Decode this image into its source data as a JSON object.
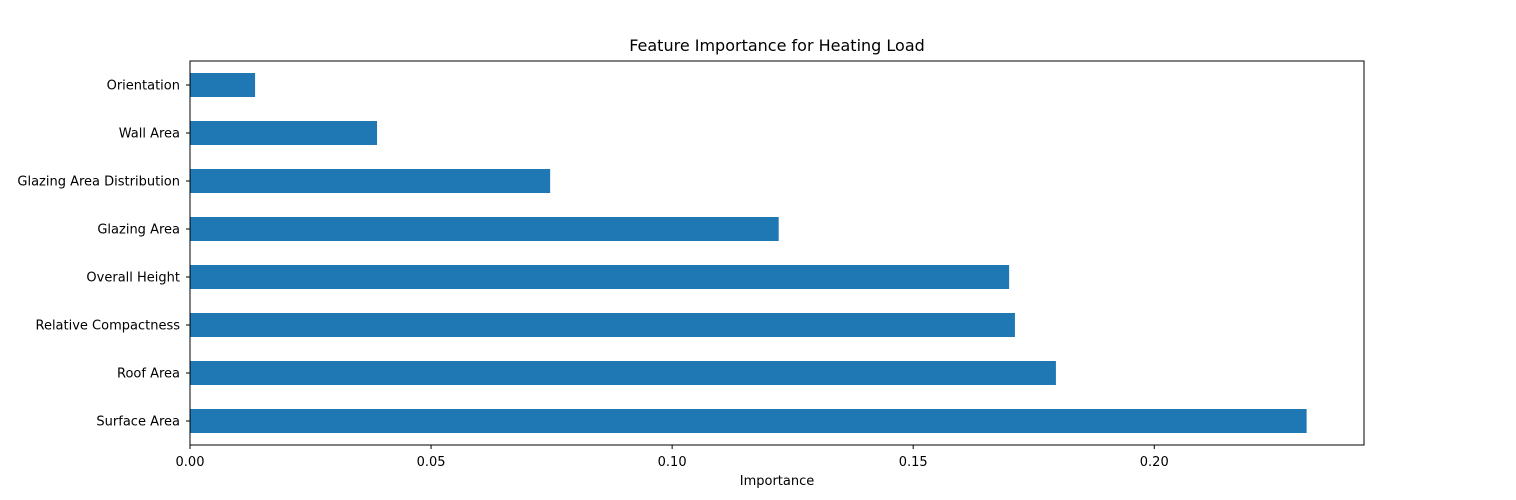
{
  "chart_data": {
    "type": "bar",
    "orientation": "horizontal",
    "title": "Feature Importance for Heating Load",
    "xlabel": "Importance",
    "ylabel": "",
    "categories": [
      "Orientation",
      "Wall Area",
      "Glazing Area Distribution",
      "Glazing Area",
      "Overall Height",
      "Relative Compactness",
      "Roof Area",
      "Surface Area"
    ],
    "values": [
      0.0135,
      0.0388,
      0.0747,
      0.1221,
      0.1699,
      0.1711,
      0.1796,
      0.2316
    ],
    "xlim": [
      0,
      0.2435
    ],
    "xticks": [
      "0.00",
      "0.05",
      "0.10",
      "0.15",
      "0.20"
    ],
    "bar_color": "#1f77b4",
    "grid": false,
    "legend": "none"
  }
}
